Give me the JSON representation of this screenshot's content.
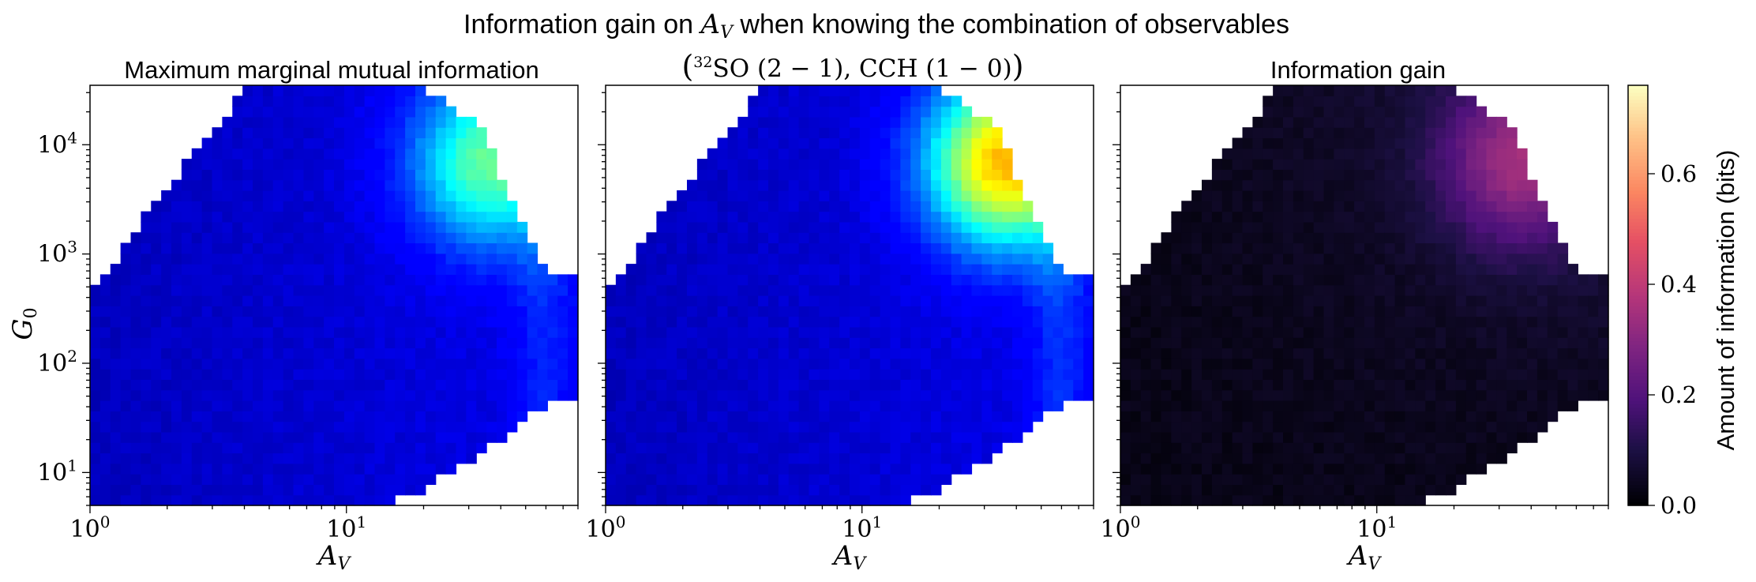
{
  "figure": {
    "suptitle_prefix": "Information gain on ",
    "suptitle_var": "A",
    "suptitle_var_sub": "V",
    "suptitle_suffix": " when knowing the combination of observables"
  },
  "colorbar": {
    "label": "Amount of information (bits)",
    "ticks": [
      "0.0",
      "0.2",
      "0.4",
      "0.6"
    ],
    "range": [
      0,
      0.76
    ],
    "colormap": "magma"
  },
  "chart_data": [
    {
      "type": "heatmap",
      "title": "Maximum marginal mutual information",
      "xlabel": "A_V",
      "ylabel": "G_0",
      "xscale": "log",
      "yscale": "log",
      "xlim": [
        1,
        80
      ],
      "ylim": [
        5,
        35000
      ],
      "x_ticks": [
        "10^0",
        "10^1"
      ],
      "y_ticks": [
        "10^1",
        "10^2",
        "10^3",
        "10^4"
      ],
      "colormap": "jet",
      "value_range": [
        0,
        0.76
      ],
      "grid": "48x40 cells, log-spaced",
      "regions_mean_bits": {
        "low_AV": 0.04,
        "mid_AV": 0.06,
        "high_AV_high_G0": 0.3
      }
    },
    {
      "type": "heatmap",
      "title": "(32SO (2−1), CCH (1−0))",
      "xlabel": "A_V",
      "xscale": "log",
      "yscale": "log",
      "xlim": [
        1,
        80
      ],
      "ylim": [
        5,
        35000
      ],
      "x_ticks": [
        "10^0",
        "10^1"
      ],
      "colormap": "jet",
      "value_range": [
        0,
        0.76
      ],
      "regions_mean_bits": {
        "low_AV": 0.04,
        "mid_AV": 0.06,
        "high_AV_high_G0": 0.45
      }
    },
    {
      "type": "heatmap",
      "title": "Information gain",
      "xlabel": "A_V",
      "xscale": "log",
      "yscale": "log",
      "xlim": [
        1,
        80
      ],
      "ylim": [
        5,
        35000
      ],
      "x_ticks": [
        "10^0",
        "10^1"
      ],
      "colormap": "magma",
      "value_range": [
        0,
        0.76
      ],
      "regions_mean_bits": {
        "low_AV": 0.02,
        "mid_AV": 0.06,
        "high_AV_high_G0": 0.3
      }
    }
  ],
  "middle_title": {
    "sup": "32",
    "species1": "SO",
    "trans1": "(2 − 1)",
    "species2": "CCH",
    "trans2": "(1 − 0)"
  }
}
